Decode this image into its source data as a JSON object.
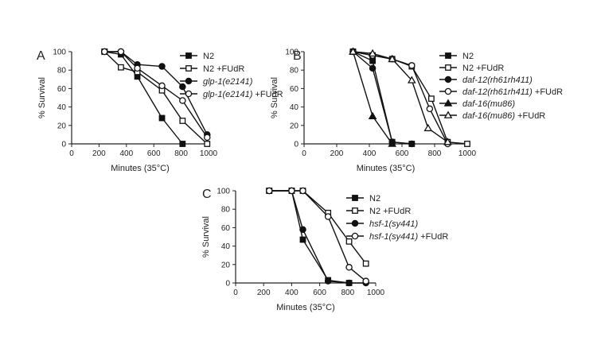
{
  "chart_data": [
    {
      "panel": "A",
      "type": "line",
      "xlabel": "Minutes (35°C)",
      "ylabel": "% Survival",
      "xlim": [
        0,
        1000
      ],
      "ylim": [
        0,
        100
      ],
      "xticks": [
        0,
        200,
        400,
        600,
        800,
        1000
      ],
      "yticks": [
        0,
        20,
        40,
        60,
        80,
        100
      ],
      "series": [
        {
          "name": "N2",
          "italic": "",
          "suffix": "",
          "marker": "square-filled",
          "x": [
            240,
            360,
            480,
            660,
            810
          ],
          "y": [
            100,
            97,
            73,
            28,
            0
          ]
        },
        {
          "name": "N2 +FUdR",
          "italic": "",
          "suffix": "",
          "marker": "square-open",
          "x": [
            240,
            360,
            480,
            660,
            810,
            990
          ],
          "y": [
            100,
            83,
            78,
            58,
            25,
            0
          ]
        },
        {
          "name": "",
          "italic": "glp-1(e2141)",
          "suffix": "",
          "marker": "circle-filled",
          "x": [
            240,
            360,
            480,
            660,
            810,
            990
          ],
          "y": [
            100,
            100,
            86,
            84,
            62,
            10
          ]
        },
        {
          "name": "",
          "italic": "glp-1(e2141)",
          "suffix": " +FUdR",
          "marker": "circle-open",
          "x": [
            240,
            360,
            480,
            660,
            810,
            990
          ],
          "y": [
            100,
            100,
            82,
            63,
            47,
            7
          ]
        }
      ]
    },
    {
      "panel": "B",
      "type": "line",
      "xlabel": "Minutes (35°C)",
      "ylabel": "% Survival",
      "xlim": [
        0,
        1000
      ],
      "ylim": [
        0,
        100
      ],
      "xticks": [
        0,
        200,
        400,
        600,
        800,
        1000
      ],
      "yticks": [
        0,
        20,
        40,
        60,
        80,
        100
      ],
      "series": [
        {
          "name": "N2",
          "italic": "",
          "suffix": "",
          "marker": "square-filled",
          "x": [
            300,
            420,
            540,
            660
          ],
          "y": [
            100,
            90,
            2,
            0
          ]
        },
        {
          "name": "N2 +FUdR",
          "italic": "",
          "suffix": "",
          "marker": "square-open",
          "x": [
            300,
            420,
            540,
            660,
            780,
            880,
            1000
          ],
          "y": [
            100,
            96,
            92,
            84,
            49,
            2,
            0
          ]
        },
        {
          "name": "",
          "italic": "daf-12(rh61rh411)",
          "suffix": "",
          "marker": "circle-filled",
          "x": [
            300,
            420,
            540,
            660
          ],
          "y": [
            100,
            82,
            2,
            0
          ]
        },
        {
          "name": "",
          "italic": "daf-12(rh61rh411)",
          "suffix": " +FUdR",
          "marker": "circle-open",
          "x": [
            300,
            420,
            540,
            660,
            770,
            880
          ],
          "y": [
            100,
            96,
            92,
            85,
            38,
            0
          ]
        },
        {
          "name": "",
          "italic": "daf-16(mu86)",
          "suffix": "",
          "marker": "triangle-filled",
          "x": [
            300,
            420,
            540
          ],
          "y": [
            100,
            30,
            0
          ]
        },
        {
          "name": "",
          "italic": "daf-16(mu86)",
          "suffix": " +FUdR",
          "marker": "triangle-open",
          "x": [
            300,
            420,
            540,
            660,
            760,
            880
          ],
          "y": [
            100,
            98,
            92,
            69,
            17,
            2
          ]
        }
      ]
    },
    {
      "panel": "C",
      "type": "line",
      "xlabel": "Minutes (35°C)",
      "ylabel": "% Survival",
      "xlim": [
        0,
        1000
      ],
      "ylim": [
        0,
        100
      ],
      "xticks": [
        0,
        200,
        400,
        600,
        800,
        1000
      ],
      "yticks": [
        0,
        20,
        40,
        60,
        80,
        100
      ],
      "series": [
        {
          "name": "N2",
          "italic": "",
          "suffix": "",
          "marker": "square-filled",
          "x": [
            240,
            400,
            480,
            660,
            810
          ],
          "y": [
            100,
            100,
            47,
            3,
            0
          ]
        },
        {
          "name": "N2 +FUdR",
          "italic": "",
          "suffix": "",
          "marker": "square-open",
          "x": [
            240,
            400,
            480,
            660,
            810,
            930
          ],
          "y": [
            100,
            100,
            100,
            76,
            45,
            21
          ]
        },
        {
          "name": "",
          "italic": "hsf-1(sy441)",
          "suffix": "",
          "marker": "circle-filled",
          "x": [
            240,
            400,
            480,
            660,
            810,
            930
          ],
          "y": [
            100,
            100,
            58,
            2,
            0,
            0
          ]
        },
        {
          "name": "",
          "italic": "hsf-1(sy441)",
          "suffix": "  +FUdR",
          "marker": "circle-open",
          "x": [
            240,
            400,
            480,
            660,
            810,
            930
          ],
          "y": [
            100,
            100,
            100,
            72,
            17,
            2
          ]
        }
      ]
    }
  ]
}
